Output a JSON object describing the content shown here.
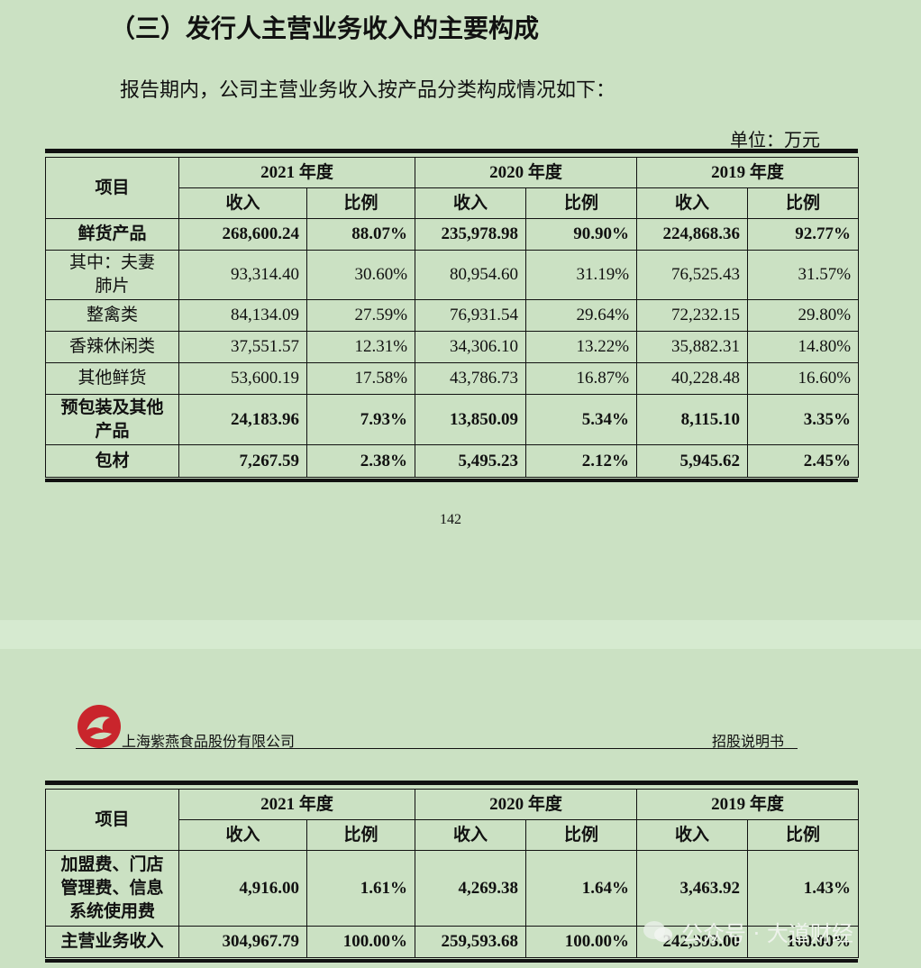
{
  "heading": "（三）发行人主营业务收入的主要构成",
  "intro": "报告期内，公司主营业务收入按产品分类构成情况如下：",
  "unit": "单位：万元",
  "table1": {
    "header": {
      "corner": "项目",
      "years": [
        "2021 年度",
        "2020 年度",
        "2019 年度"
      ],
      "sub": [
        "收入",
        "比例",
        "收入",
        "比例",
        "收入",
        "比例"
      ]
    },
    "rows": [
      [
        "鲜货产品",
        "268,600.24",
        "88.07%",
        "235,978.98",
        "90.90%",
        "224,868.36",
        "92.77%"
      ],
      [
        "其中：夫妻\n肺片",
        "93,314.40",
        "30.60%",
        "80,954.60",
        "31.19%",
        "76,525.43",
        "31.57%"
      ],
      [
        "整禽类",
        "84,134.09",
        "27.59%",
        "76,931.54",
        "29.64%",
        "72,232.15",
        "29.80%"
      ],
      [
        "香辣休闲类",
        "37,551.57",
        "12.31%",
        "34,306.10",
        "13.22%",
        "35,882.31",
        "14.80%"
      ],
      [
        "其他鲜货",
        "53,600.19",
        "17.58%",
        "43,786.73",
        "16.87%",
        "40,228.48",
        "16.60%"
      ],
      [
        "预包装及其他\n产品",
        "24,183.96",
        "7.93%",
        "13,850.09",
        "5.34%",
        "8,115.10",
        "3.35%"
      ],
      [
        "包材",
        "7,267.59",
        "2.38%",
        "5,495.23",
        "2.12%",
        "5,945.62",
        "2.45%"
      ]
    ]
  },
  "page_number": "142",
  "page_header": {
    "company": "上海紫燕食品股份有限公司",
    "document": "招股说明书"
  },
  "table2": {
    "header": {
      "corner": "项目",
      "years": [
        "2021 年度",
        "2020 年度",
        "2019 年度"
      ],
      "sub": [
        "收入",
        "比例",
        "收入",
        "比例",
        "收入",
        "比例"
      ]
    },
    "rows": [
      [
        "加盟费、门店\n管理费、信息\n系统使用费",
        "4,916.00",
        "1.61%",
        "4,269.38",
        "1.64%",
        "3,463.92",
        "1.43%"
      ],
      [
        "主营业务收入",
        "304,967.79",
        "100.00%",
        "259,593.68",
        "100.00%",
        "242,393.00",
        "100.00%"
      ]
    ]
  },
  "watermark": "公众号 · 大道财经"
}
